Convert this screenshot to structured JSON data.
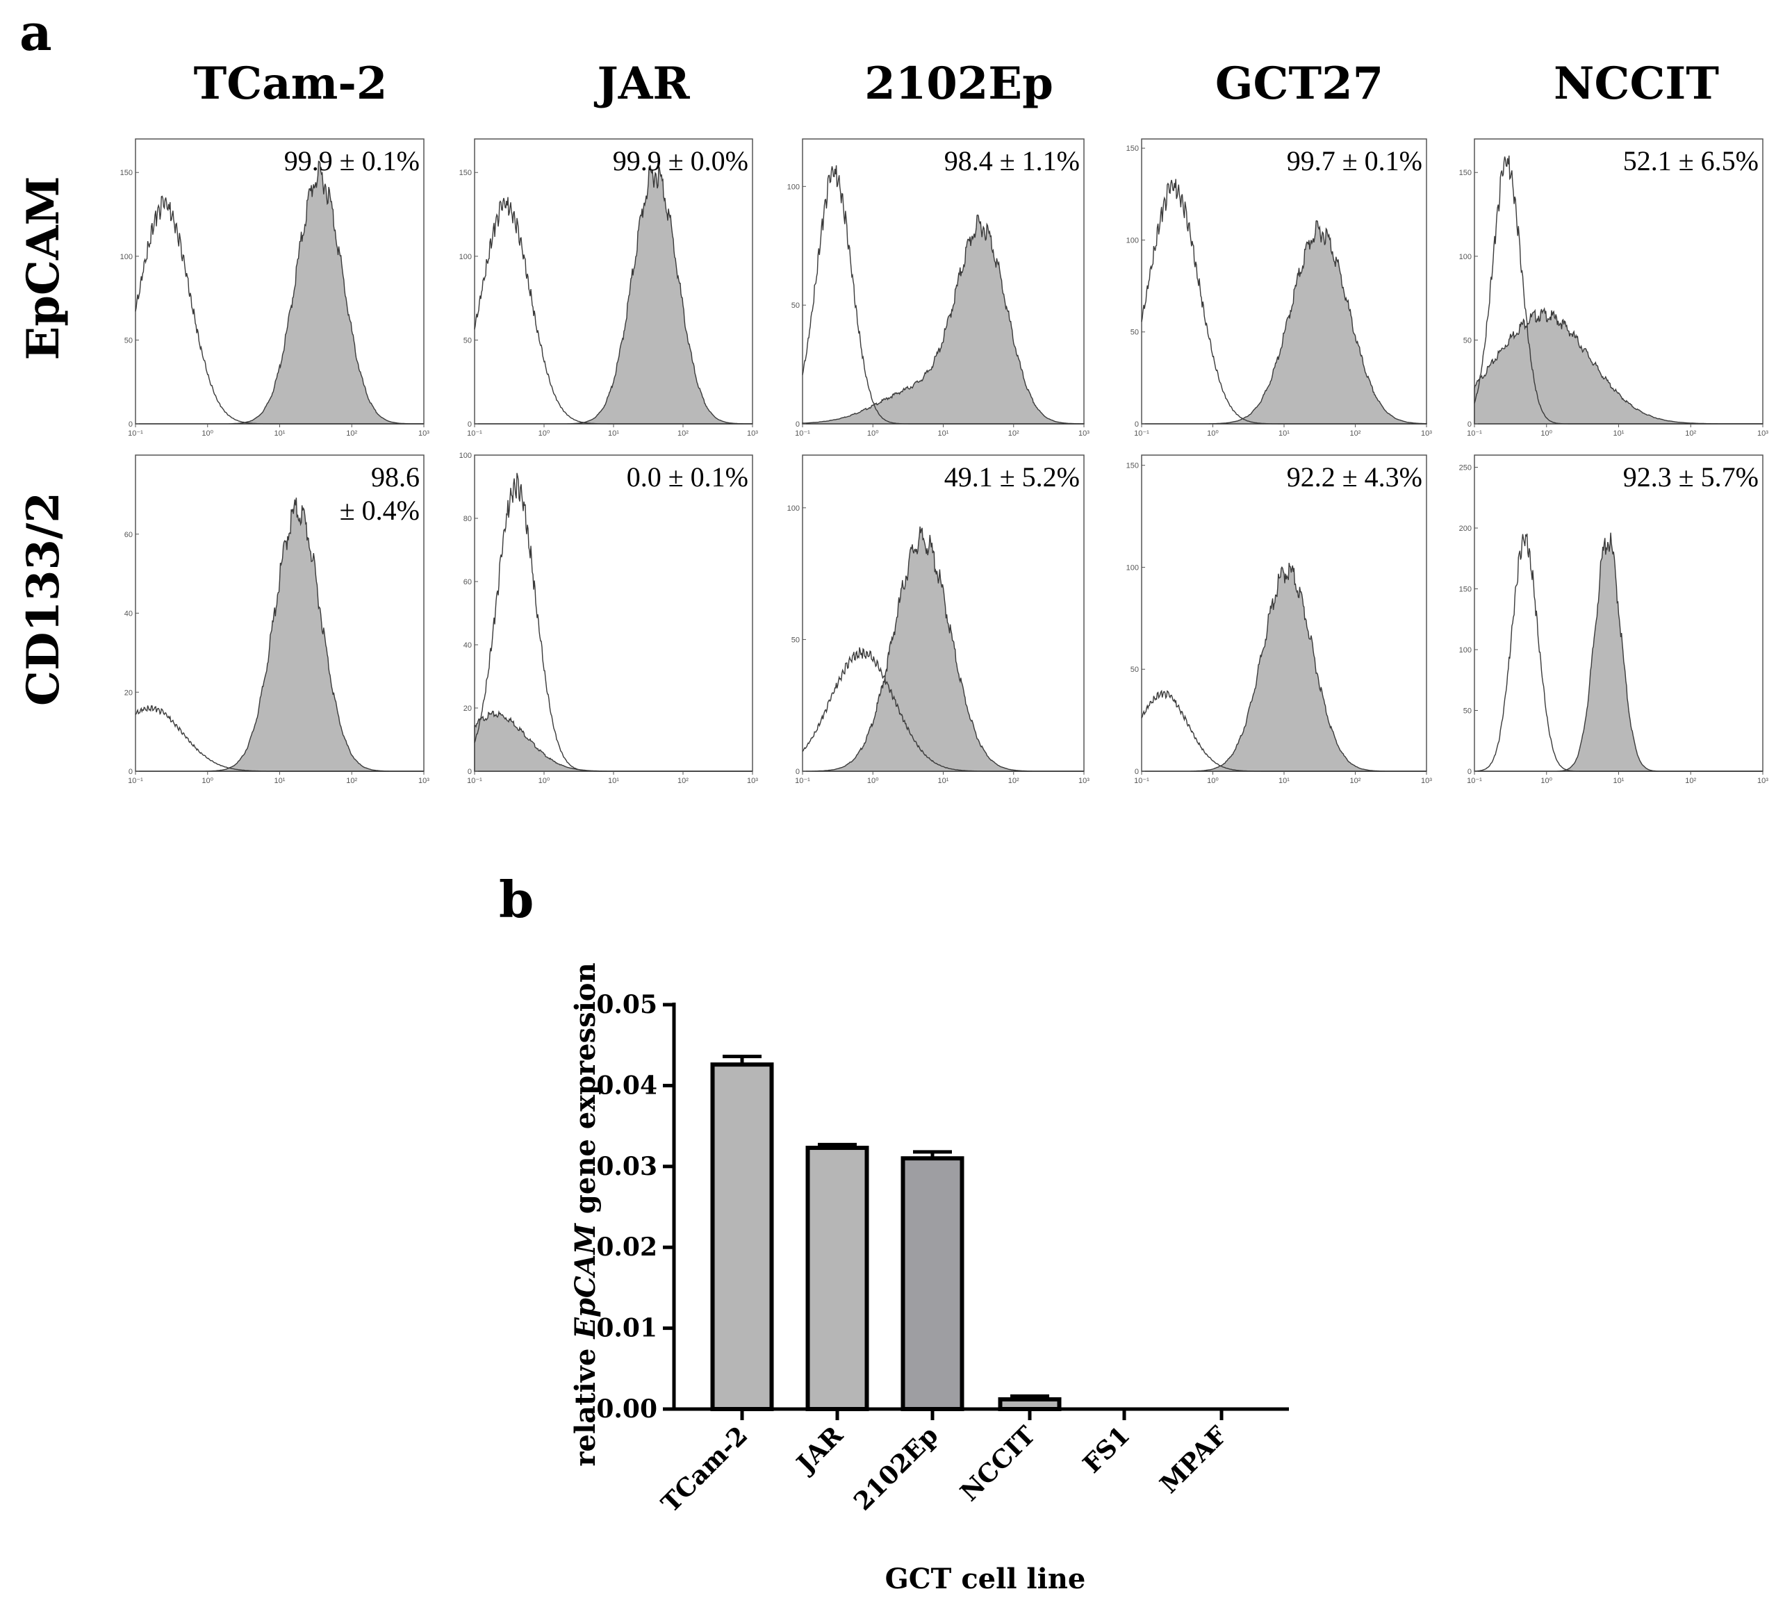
{
  "panels": {
    "a": "a",
    "b": "b"
  },
  "colors": {
    "filled": "#b9b9b9",
    "outline": "#3a3a3a",
    "bar_light": "#b6b6b6",
    "bar_dark": "#9e9ea2"
  },
  "histograms": {
    "columns": [
      "TCam-2",
      "JAR",
      "2102Ep",
      "GCT27",
      "NCCIT"
    ],
    "rows": [
      "EpCAM",
      "CD133/2"
    ],
    "x_tick_labels": [
      "10⁻¹",
      "10⁰",
      "10¹",
      "10²",
      "10³"
    ],
    "cells": [
      {
        "row": "EpCAM",
        "column": "TCam-2",
        "label": [
          "99.9 ± 0.1%"
        ],
        "y_ticks": [
          0,
          50,
          100,
          150
        ],
        "ymax": 170,
        "control": {
          "mu": -0.6,
          "sd": 0.35,
          "peak": 130
        },
        "stained": [
          {
            "mu": 1.55,
            "sd": 0.32,
            "peak": 148
          }
        ]
      },
      {
        "row": "EpCAM",
        "column": "JAR",
        "label": [
          "99.9 ± 0.0%"
        ],
        "y_ticks": [
          0,
          50,
          100,
          150
        ],
        "ymax": 170,
        "control": {
          "mu": -0.55,
          "sd": 0.35,
          "peak": 130
        },
        "stained": [
          {
            "mu": 1.6,
            "sd": 0.32,
            "peak": 150
          }
        ]
      },
      {
        "row": "EpCAM",
        "column": "2102Ep",
        "label": [
          "98.4 ± 1.1%"
        ],
        "y_ticks": [
          0,
          50,
          100
        ],
        "ymax": 120,
        "control": {
          "mu": -0.55,
          "sd": 0.25,
          "peak": 105
        },
        "stained": [
          {
            "mu": 1.55,
            "sd": 0.35,
            "peak": 78
          },
          {
            "mu": 0.7,
            "sd": 0.6,
            "peak": 15
          }
        ]
      },
      {
        "row": "EpCAM",
        "column": "GCT27",
        "label": [
          "99.7 ± 0.1%"
        ],
        "y_ticks": [
          0,
          50,
          100,
          150
        ],
        "ymax": 155,
        "control": {
          "mu": -0.55,
          "sd": 0.35,
          "peak": 128
        },
        "stained": [
          {
            "mu": 1.5,
            "sd": 0.4,
            "peak": 105
          }
        ]
      },
      {
        "row": "EpCAM",
        "column": "NCCIT",
        "label": [
          "52.1 ± 6.5%"
        ],
        "y_ticks": [
          0,
          50,
          100,
          150
        ],
        "ymax": 170,
        "control": {
          "mu": -0.55,
          "sd": 0.2,
          "peak": 155
        },
        "stained": [
          {
            "mu": -0.05,
            "sd": 0.65,
            "peak": 65
          }
        ]
      },
      {
        "row": "CD133/2",
        "column": "TCam-2",
        "label": [
          "98.6",
          "± 0.4%"
        ],
        "y_ticks": [
          0,
          20,
          40,
          60
        ],
        "ymax": 80,
        "control": {
          "mu": -0.8,
          "sd": 0.45,
          "peak": 16
        },
        "stained": [
          {
            "mu": 1.25,
            "sd": 0.32,
            "peak": 66
          }
        ]
      },
      {
        "row": "CD133/2",
        "column": "JAR",
        "label": [
          "0.0 ± 0.1%"
        ],
        "y_ticks": [
          0,
          20,
          40,
          60,
          80,
          100
        ],
        "ymax": 100,
        "control": {
          "mu": -0.4,
          "sd": 0.28,
          "peak": 90
        },
        "stained": [
          {
            "mu": -0.7,
            "sd": 0.45,
            "peak": 18
          }
        ]
      },
      {
        "row": "CD133/2",
        "column": "2102Ep",
        "label": [
          "49.1 ± 5.2%"
        ],
        "y_ticks": [
          0,
          50,
          100
        ],
        "ymax": 120,
        "control": {
          "mu": -0.15,
          "sd": 0.45,
          "peak": 45
        },
        "stained": [
          {
            "mu": 0.7,
            "sd": 0.4,
            "peak": 88
          }
        ]
      },
      {
        "row": "CD133/2",
        "column": "GCT27",
        "label": [
          "92.2 ± 4.3%"
        ],
        "y_ticks": [
          0,
          50,
          100,
          150
        ],
        "ymax": 155,
        "control": {
          "mu": -0.7,
          "sd": 0.35,
          "peak": 38
        },
        "stained": [
          {
            "mu": 1.05,
            "sd": 0.35,
            "peak": 98
          }
        ]
      },
      {
        "row": "CD133/2",
        "column": "NCCIT",
        "label": [
          "92.3 ± 5.7%"
        ],
        "y_ticks": [
          0,
          50,
          100,
          150,
          200,
          250
        ],
        "ymax": 260,
        "control": {
          "mu": -0.3,
          "sd": 0.18,
          "peak": 190
        },
        "stained": [
          {
            "mu": 0.85,
            "sd": 0.18,
            "peak": 190
          }
        ]
      }
    ]
  },
  "chart_data": {
    "type": "bar",
    "title": "",
    "categories": [
      "TCam-2",
      "JAR",
      "2102Ep",
      "NCCIT",
      "FS1",
      "MPAF"
    ],
    "values": [
      0.0426,
      0.0323,
      0.031,
      0.0012,
      0.0,
      0.0
    ],
    "errors": [
      0.001,
      0.0004,
      0.0008,
      0.0004,
      0.0,
      0.0
    ],
    "xlabel": "GCT cell line",
    "ylabel_parts": {
      "before": "relative ",
      "italic": "EpCAM",
      "after": " gene expression"
    },
    "ylim": [
      0,
      0.05
    ],
    "y_ticks": [
      "0.00",
      "0.01",
      "0.02",
      "0.03",
      "0.04",
      "0.05"
    ]
  }
}
